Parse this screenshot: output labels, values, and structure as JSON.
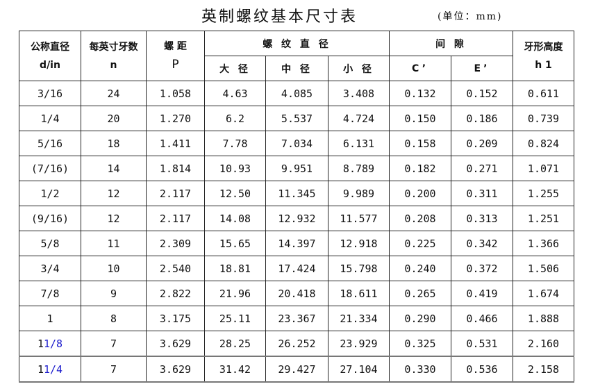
{
  "title": "英制螺纹基本尺寸表",
  "unit": "(单位：mm)",
  "headers": {
    "d": "公称直径",
    "d_sub": "d/in",
    "n": "每英寸牙数",
    "n_sub": "n",
    "p": "螺 距",
    "p_sub": "P",
    "dia": "螺 纹 直 径",
    "major": "大 径",
    "pitch": "中 径",
    "minor": "小 径",
    "gap": "间 隙",
    "c": "C’",
    "e": "E’",
    "h": "牙形高度",
    "h_sub": "h 1"
  },
  "rows": [
    [
      "3/16",
      "24",
      "1.058",
      "4.63",
      "4.085",
      "3.408",
      "0.132",
      "0.152",
      "0.611"
    ],
    [
      "1/4",
      "20",
      "1.270",
      "6.2",
      "5.537",
      "4.724",
      "0.150",
      "0.186",
      "0.739"
    ],
    [
      "5/16",
      "18",
      "1.411",
      "7.78",
      "7.034",
      "6.131",
      "0.158",
      "0.209",
      "0.824"
    ],
    [
      "(7/16)",
      "14",
      "1.814",
      "10.93",
      "9.951",
      "8.789",
      "0.182",
      "0.271",
      "1.071"
    ],
    [
      "1/2",
      "12",
      "2.117",
      "12.50",
      "11.345",
      "9.989",
      "0.200",
      "0.311",
      "1.255"
    ],
    [
      "(9/16)",
      "12",
      "2.117",
      "14.08",
      "12.932",
      "11.577",
      "0.208",
      "0.313",
      "1.251"
    ],
    [
      "5/8",
      "11",
      "2.309",
      "15.65",
      "14.397",
      "12.918",
      "0.225",
      "0.342",
      "1.366"
    ],
    [
      "3/4",
      "10",
      "2.540",
      "18.81",
      "17.424",
      "15.798",
      "0.240",
      "0.372",
      "1.506"
    ],
    [
      "7/8",
      "9",
      "2.822",
      "21.96",
      "20.418",
      "18.611",
      "0.265",
      "0.419",
      "1.674"
    ],
    [
      "1",
      "8",
      "3.175",
      "25.11",
      "23.367",
      "21.334",
      "0.290",
      "0.466",
      "1.888"
    ],
    [
      "1 1/8",
      "7",
      "3.629",
      "28.25",
      "26.252",
      "23.929",
      "0.325",
      "0.531",
      "2.160"
    ],
    [
      "1 1/4",
      "7",
      "3.629",
      "31.42",
      "29.427",
      "27.104",
      "0.330",
      "0.536",
      "2.158"
    ]
  ],
  "colors": {
    "fraction_highlight": "#1a1acc"
  }
}
